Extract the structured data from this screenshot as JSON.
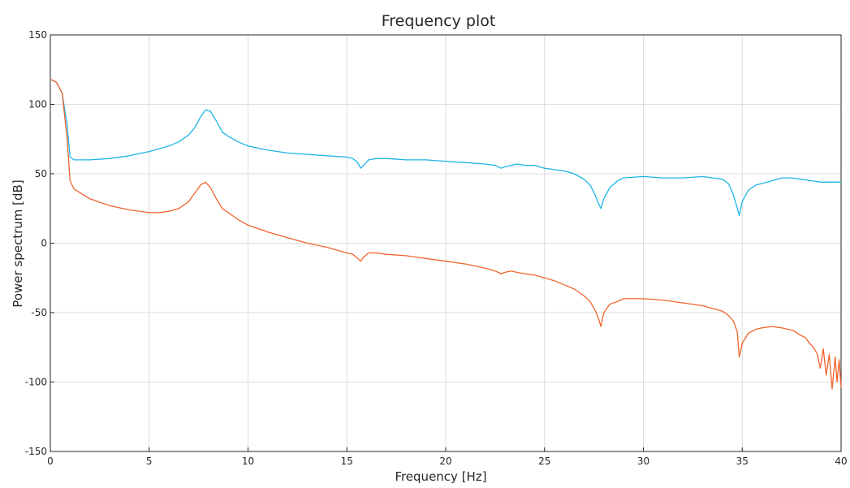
{
  "chart_data": {
    "type": "line",
    "title": "Frequency plot",
    "xlabel": "Frequency [Hz]",
    "ylabel": "Power spectrum [dB]",
    "xlim": [
      0,
      40
    ],
    "ylim": [
      -150,
      150
    ],
    "xticks": [
      0,
      5,
      10,
      15,
      20,
      25,
      30,
      35,
      40
    ],
    "yticks": [
      -150,
      -100,
      -50,
      0,
      50,
      100,
      150
    ],
    "grid": true,
    "series": [
      {
        "color": "#1eb4e6",
        "x": [
          0,
          0.3,
          0.6,
          0.85,
          1.0,
          1.2,
          2,
          3,
          4,
          5,
          5.5,
          6,
          6.5,
          7,
          7.3,
          7.6,
          7.85,
          8.1,
          8.4,
          8.7,
          9,
          9.5,
          10,
          11,
          12,
          13,
          14,
          15,
          15.3,
          15.55,
          15.7,
          15.85,
          16.1,
          16.5,
          17,
          18,
          19,
          20,
          21,
          22,
          22.5,
          22.8,
          23,
          23.3,
          23.6,
          24,
          24.5,
          25,
          25.5,
          26,
          26.5,
          27,
          27.3,
          27.55,
          27.75,
          27.85,
          28,
          28.3,
          28.7,
          29,
          30,
          31,
          32,
          33,
          34,
          34.3,
          34.55,
          34.75,
          34.85,
          35,
          35.3,
          35.7,
          36,
          36.5,
          37,
          37.5,
          38,
          38.5,
          39,
          39.5,
          40
        ],
        "y": [
          118,
          116,
          108,
          85,
          62,
          60,
          60,
          61,
          63,
          66,
          68,
          70,
          73,
          78,
          83,
          91,
          96,
          95,
          88,
          80,
          77,
          73,
          70,
          67,
          65,
          64,
          63,
          62,
          61,
          58,
          54,
          56,
          60,
          61,
          61,
          60,
          60,
          59,
          58,
          57,
          56,
          54,
          55,
          56,
          57,
          56,
          56,
          54,
          53,
          52,
          50,
          46,
          42,
          35,
          28,
          25,
          32,
          40,
          45,
          47,
          48,
          47,
          47,
          48,
          46,
          43,
          35,
          25,
          20,
          30,
          38,
          42,
          43,
          45,
          47,
          47,
          46,
          45,
          44,
          44,
          44
        ]
      },
      {
        "color": "#f0642d",
        "x": [
          0,
          0.3,
          0.6,
          0.85,
          1.0,
          1.2,
          2,
          3,
          4,
          5,
          5.5,
          6,
          6.5,
          7,
          7.3,
          7.6,
          7.85,
          8.1,
          8.4,
          8.7,
          9,
          9.5,
          10,
          11,
          12,
          13,
          14,
          15,
          15.3,
          15.55,
          15.7,
          15.85,
          16.1,
          16.5,
          17,
          18,
          19,
          20,
          21,
          22,
          22.5,
          22.8,
          23,
          23.3,
          23.6,
          24,
          24.5,
          25,
          25.5,
          26,
          26.5,
          27,
          27.3,
          27.55,
          27.75,
          27.85,
          28,
          28.3,
          28.7,
          29,
          30,
          31,
          32,
          33,
          34,
          34.3,
          34.55,
          34.75,
          34.85,
          35,
          35.3,
          35.7,
          36,
          36.5,
          37,
          37.3,
          37.6,
          37.9,
          38.2,
          38.4,
          38.6,
          38.8,
          38.95,
          39.1,
          39.25,
          39.4,
          39.55,
          39.7,
          39.8,
          39.9,
          40
        ],
        "y": [
          118,
          116,
          108,
          75,
          45,
          39,
          32,
          27,
          24,
          22,
          22,
          23,
          25,
          30,
          36,
          42,
          44,
          40,
          32,
          25,
          22,
          17,
          13,
          8,
          4,
          0,
          -3,
          -7,
          -8,
          -11,
          -13,
          -10,
          -7,
          -7,
          -8,
          -9,
          -11,
          -13,
          -15,
          -18,
          -20,
          -22,
          -21,
          -20,
          -21,
          -22,
          -23,
          -25,
          -27,
          -30,
          -33,
          -38,
          -42,
          -48,
          -55,
          -60,
          -50,
          -44,
          -42,
          -40,
          -40,
          -41,
          -43,
          -45,
          -49,
          -52,
          -56,
          -64,
          -82,
          -72,
          -65,
          -62,
          -61,
          -60,
          -61,
          -62,
          -63,
          -66,
          -68,
          -72,
          -75,
          -80,
          -90,
          -76,
          -95,
          -80,
          -105,
          -82,
          -100,
          -84,
          -104
        ]
      }
    ]
  }
}
